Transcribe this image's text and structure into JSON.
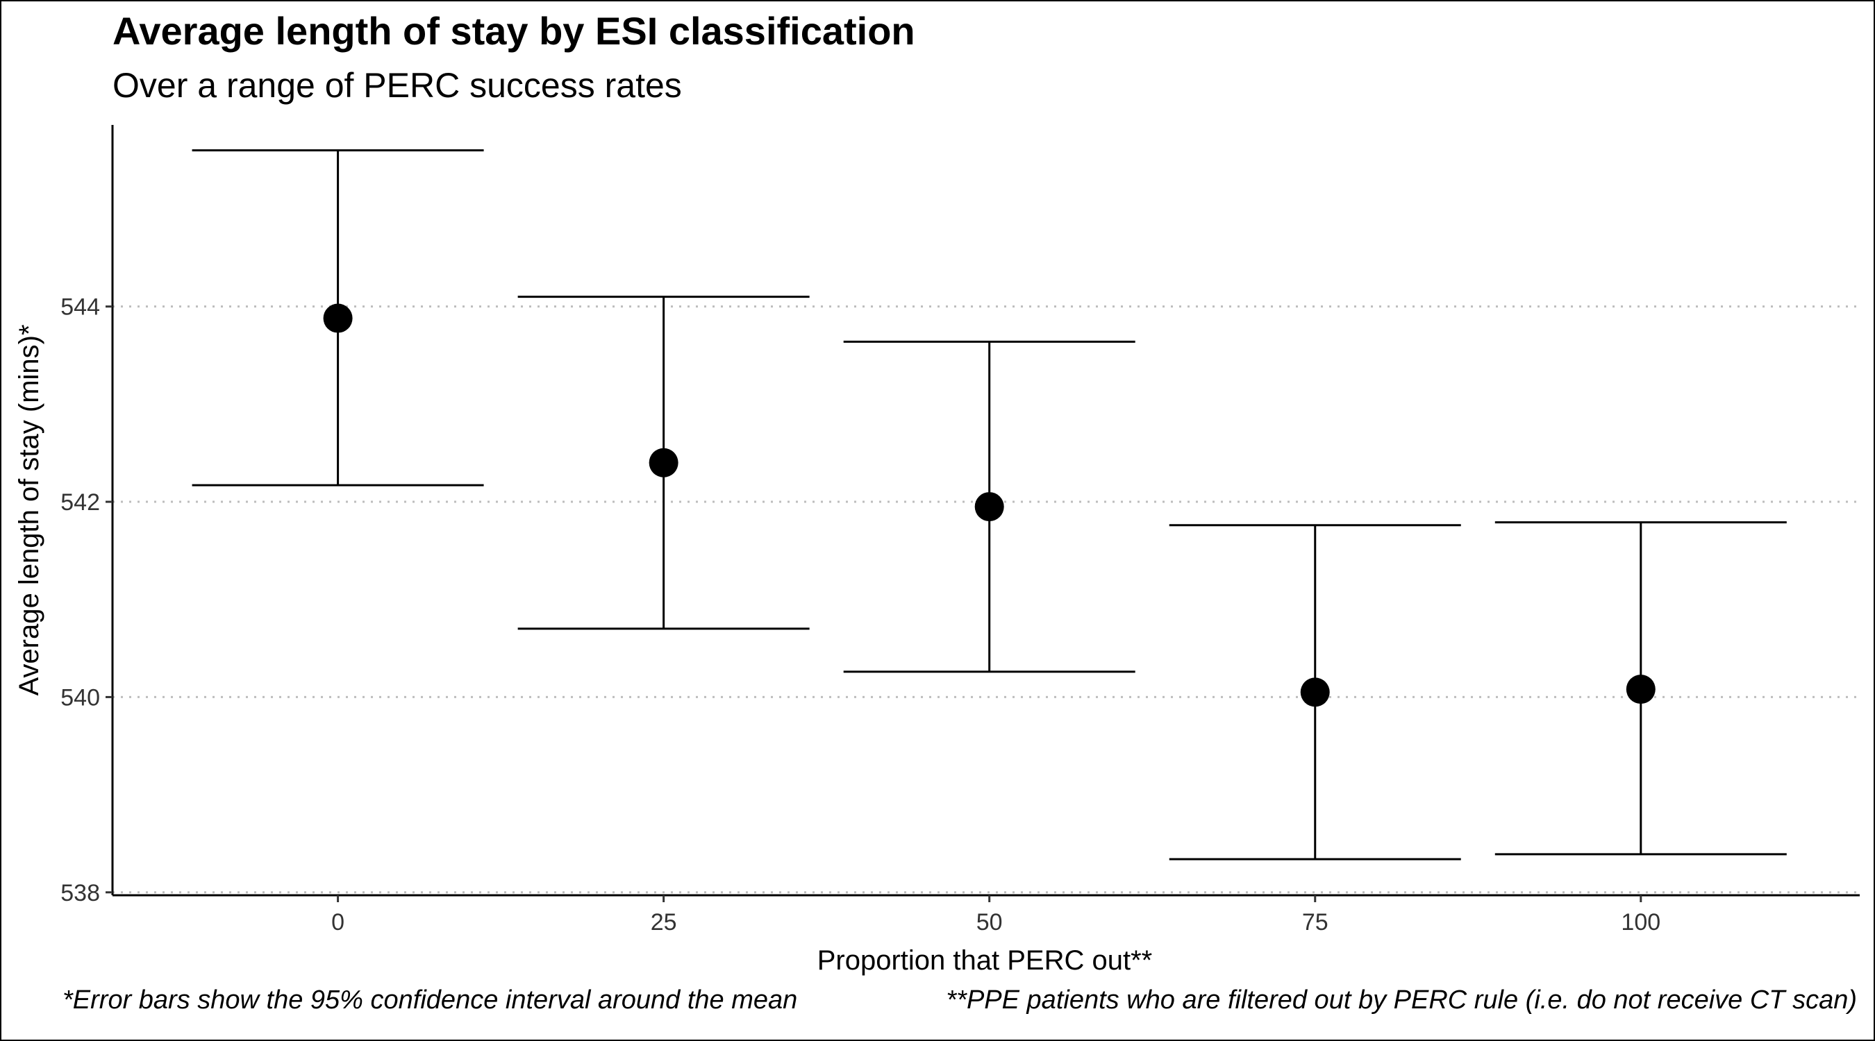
{
  "chart_data": {
    "type": "scatter",
    "title": "Average length of stay by ESI classification",
    "subtitle": "Over a range of PERC success rates",
    "xlabel": "Proportion that PERC out**",
    "ylabel": "Average length of stay (mins)*",
    "categories": [
      "0",
      "25",
      "50",
      "75",
      "100"
    ],
    "x": [
      0,
      25,
      50,
      75,
      100
    ],
    "mean": [
      543.88,
      542.4,
      541.95,
      540.05,
      540.08
    ],
    "ci_lower": [
      542.17,
      540.7,
      540.26,
      538.34,
      538.39
    ],
    "ci_upper": [
      545.6,
      544.1,
      543.64,
      541.76,
      541.79
    ],
    "ylim": [
      538,
      545.8
    ],
    "yticks": [
      538,
      540,
      542,
      544
    ],
    "grid": "horizontal dotted at y ticks",
    "legend": "none",
    "point_color": "#000000",
    "error_bar_color": "#000000",
    "footnotes": {
      "left": "*Error bars show the 95% confidence interval around the mean",
      "right": "**PPE patients who are filtered out by PERC rule (i.e. do not receive CT scan)"
    }
  }
}
